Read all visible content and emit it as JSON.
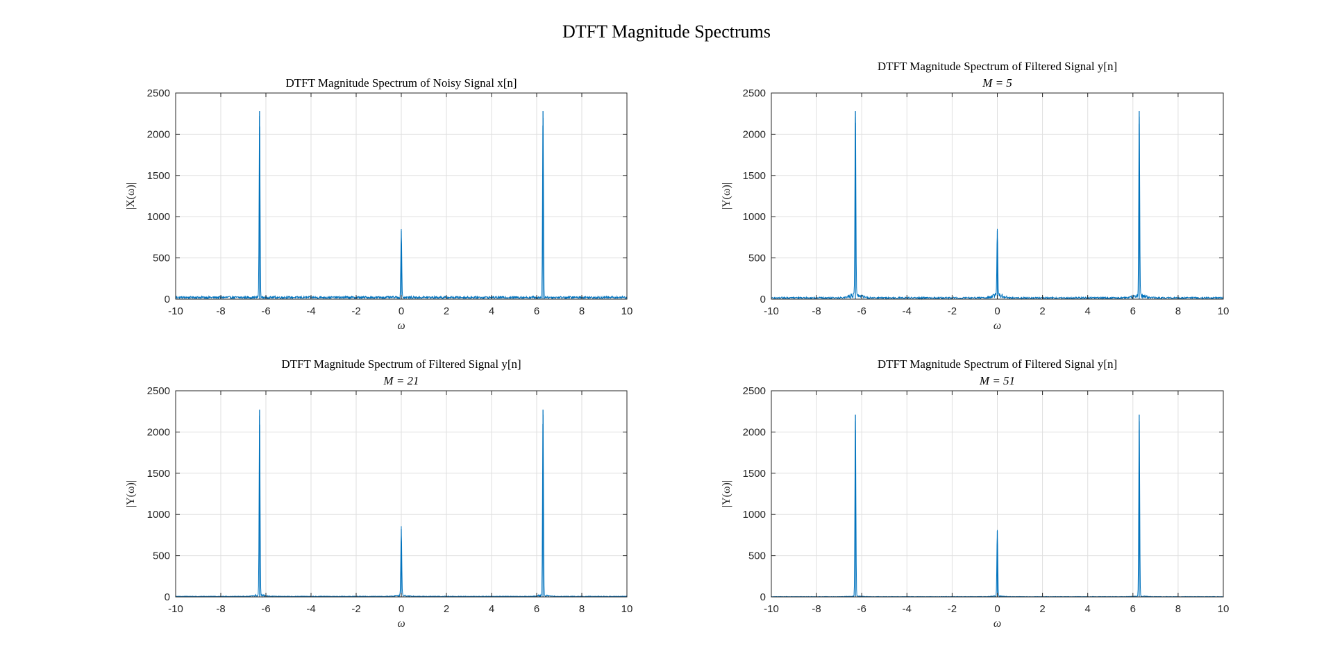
{
  "figure": {
    "title": "DTFT Magnitude Spectrums",
    "colors": {
      "line": "#0072bd",
      "grid": "#dfdfdf",
      "axes": "#262626"
    }
  },
  "chart_data": [
    {
      "type": "line",
      "title": "DTFT Magnitude Spectrum of Noisy Signal x[n]",
      "subtitle": "",
      "xlabel": "ω",
      "ylabel": "|X(ω)|",
      "xlim": [
        -10,
        10
      ],
      "ylim": [
        0,
        2500
      ],
      "xticks": [
        -10,
        -8,
        -6,
        -4,
        -2,
        0,
        2,
        4,
        6,
        8,
        10
      ],
      "yticks": [
        0,
        500,
        1000,
        1500,
        2000,
        2500
      ],
      "grid": true,
      "legend": "none",
      "peaks": [
        {
          "x": -6.28,
          "y": 2280
        },
        {
          "x": 0,
          "y": 830
        },
        {
          "x": 6.28,
          "y": 2280
        }
      ],
      "noise_floor": 35,
      "peak_width": 0.02
    },
    {
      "type": "line",
      "title": "DTFT Magnitude Spectrum of Filtered Signal y[n]",
      "subtitle": "M = 5",
      "xlabel": "ω",
      "ylabel": "|Y(ω)|",
      "xlim": [
        -10,
        10
      ],
      "ylim": [
        0,
        2500
      ],
      "xticks": [
        -10,
        -8,
        -6,
        -4,
        -2,
        0,
        2,
        4,
        6,
        8,
        10
      ],
      "yticks": [
        0,
        500,
        1000,
        1500,
        2000,
        2500
      ],
      "grid": true,
      "legend": "none",
      "peaks": [
        {
          "x": -6.28,
          "y": 2280
        },
        {
          "x": 0,
          "y": 830
        },
        {
          "x": 6.28,
          "y": 2280
        }
      ],
      "noise_floor": 25,
      "peak_width": 0.02
    },
    {
      "type": "line",
      "title": "DTFT Magnitude Spectrum of Filtered Signal y[n]",
      "subtitle": "M = 21",
      "xlabel": "ω",
      "ylabel": "|Y(ω)|",
      "xlim": [
        -10,
        10
      ],
      "ylim": [
        0,
        2500
      ],
      "xticks": [
        -10,
        -8,
        -6,
        -4,
        -2,
        0,
        2,
        4,
        6,
        8,
        10
      ],
      "yticks": [
        0,
        500,
        1000,
        1500,
        2000,
        2500
      ],
      "grid": true,
      "legend": "none",
      "peaks": [
        {
          "x": -6.28,
          "y": 2270
        },
        {
          "x": 0,
          "y": 825
        },
        {
          "x": 6.28,
          "y": 2270
        }
      ],
      "noise_floor": 10,
      "peak_width": 0.02
    },
    {
      "type": "line",
      "title": "DTFT Magnitude Spectrum of Filtered Signal y[n]",
      "subtitle": "M = 51",
      "xlabel": "ω",
      "ylabel": "|Y(ω)|",
      "xlim": [
        -10,
        10
      ],
      "ylim": [
        0,
        2500
      ],
      "xticks": [
        -10,
        -8,
        -6,
        -4,
        -2,
        0,
        2,
        4,
        6,
        8,
        10
      ],
      "yticks": [
        0,
        500,
        1000,
        1500,
        2000,
        2500
      ],
      "grid": true,
      "legend": "none",
      "peaks": [
        {
          "x": -6.28,
          "y": 2210
        },
        {
          "x": 0,
          "y": 800
        },
        {
          "x": 6.28,
          "y": 2210
        }
      ],
      "noise_floor": 5,
      "peak_width": 0.02
    }
  ]
}
